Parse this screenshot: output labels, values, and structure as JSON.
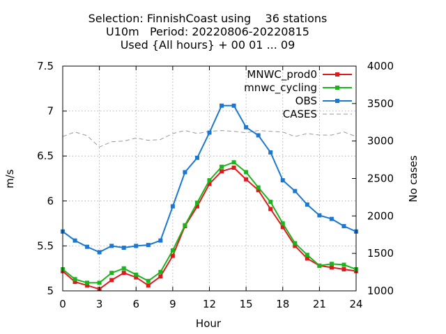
{
  "chart_data": {
    "type": "line",
    "title": [
      "Selection: FinnishCoast using    36 stations",
      "U10m   Period: 20220806-20220815",
      "Used {All hours} + 00 01 ... 09"
    ],
    "xlabel": "Hour",
    "ylabel": "m/s",
    "y2label": "No cases",
    "xlim": [
      0,
      24
    ],
    "ylim": [
      5,
      7.5
    ],
    "y2lim": [
      1000,
      4000
    ],
    "xticks": [
      0,
      3,
      6,
      9,
      12,
      15,
      18,
      21,
      24
    ],
    "yticks": [
      5,
      5.5,
      6,
      6.5,
      7,
      7.5
    ],
    "y2ticks": [
      1000,
      1500,
      2000,
      2500,
      3000,
      3500,
      4000
    ],
    "grid": true,
    "legend_position": "top-right",
    "x": [
      0,
      1,
      2,
      3,
      4,
      5,
      6,
      7,
      8,
      9,
      10,
      11,
      12,
      13,
      14,
      15,
      16,
      17,
      18,
      19,
      20,
      21,
      22,
      23,
      24
    ],
    "series": [
      {
        "name": "MNWC_prod0",
        "color": "#e0191f",
        "axis": "left",
        "marker": "square",
        "values": [
          5.22,
          5.1,
          5.06,
          5.02,
          5.12,
          5.2,
          5.15,
          5.06,
          5.16,
          5.39,
          5.72,
          5.94,
          6.19,
          6.33,
          6.37,
          6.24,
          6.12,
          5.91,
          5.71,
          5.5,
          5.36,
          5.28,
          5.26,
          5.24,
          5.22
        ]
      },
      {
        "name": "mnwc_cycling",
        "color": "#1bb41b",
        "axis": "left",
        "marker": "square",
        "values": [
          5.24,
          5.13,
          5.09,
          5.09,
          5.2,
          5.25,
          5.18,
          5.11,
          5.21,
          5.45,
          5.73,
          5.98,
          6.23,
          6.38,
          6.43,
          6.32,
          6.15,
          5.99,
          5.75,
          5.53,
          5.4,
          5.28,
          5.3,
          5.29,
          5.24
        ]
      },
      {
        "name": "OBS",
        "color": "#1a77d2",
        "axis": "left",
        "marker": "square",
        "values": [
          5.66,
          5.56,
          5.49,
          5.43,
          5.5,
          5.48,
          5.5,
          5.51,
          5.56,
          5.94,
          6.32,
          6.48,
          6.76,
          7.06,
          7.06,
          6.82,
          6.73,
          6.54,
          6.23,
          6.11,
          5.96,
          5.84,
          5.8,
          5.72,
          5.66
        ]
      },
      {
        "name": "CASES",
        "color": "#999999",
        "axis": "right",
        "dashed": true,
        "values": [
          3060,
          3120,
          3070,
          2920,
          2990,
          3000,
          3040,
          3010,
          3020,
          3100,
          3140,
          3100,
          3130,
          3140,
          3130,
          3110,
          3140,
          3130,
          3120,
          3060,
          3100,
          3080,
          3080,
          3120,
          3060
        ]
      }
    ]
  }
}
